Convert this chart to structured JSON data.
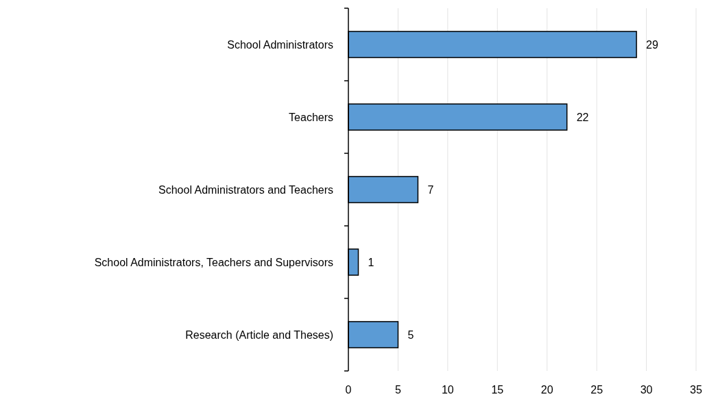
{
  "chart_data": {
    "type": "bar",
    "orientation": "horizontal",
    "categories": [
      "School Administrators",
      "Teachers",
      "School Administrators and Teachers",
      "School Administrators, Teachers and Supervisors",
      "Research (Article and Theses)"
    ],
    "values": [
      29,
      22,
      7,
      1,
      5
    ],
    "color": "#5b9bd5",
    "xlim": [
      0,
      35
    ],
    "xticks": [
      0,
      5,
      10,
      15,
      20,
      25,
      30,
      35
    ],
    "grid": "x",
    "data_labels": true
  }
}
